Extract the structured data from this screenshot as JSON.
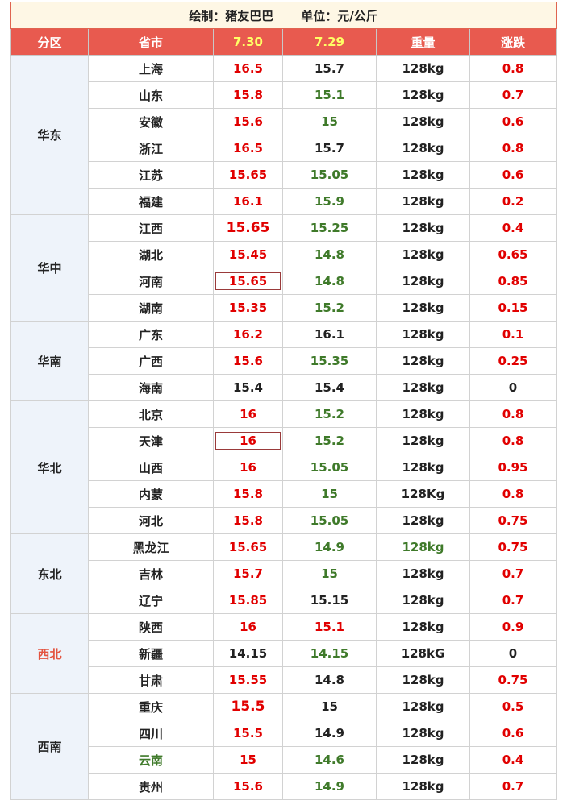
{
  "title": {
    "author": "绘制：猪友巴巴",
    "unit": "单位：元/公斤"
  },
  "headers": {
    "region": "分区",
    "province": "省市",
    "d1": "7.30",
    "d2": "7.29",
    "weight": "重量",
    "change": "涨跌"
  },
  "groups": [
    {
      "region": "华东",
      "rows": [
        {
          "prov": "上海",
          "p1": "16.5",
          "p2": "15.7",
          "w": "128kg",
          "chg": "0.8"
        },
        {
          "prov": "山东",
          "p1": "15.8",
          "p2": "15.1",
          "w": "128kg",
          "chg": "0.7"
        },
        {
          "prov": "安徽",
          "p1": "15.6",
          "p2": "15",
          "w": "128kg",
          "chg": "0.6"
        },
        {
          "prov": "浙江",
          "p1": "16.5",
          "p2": "15.7",
          "w": "128kg",
          "chg": "0.8"
        },
        {
          "prov": "江苏",
          "p1": "15.65",
          "p2": "15.05",
          "w": "128kg",
          "chg": "0.6"
        },
        {
          "prov": "福建",
          "p1": "16.1",
          "p2": "15.9",
          "w": "128kg",
          "chg": "0.2"
        }
      ]
    },
    {
      "region": "华中",
      "rows": [
        {
          "prov": "江西",
          "p1": "15.65",
          "p2": "15.25",
          "w": "128kg",
          "chg": "0.4"
        },
        {
          "prov": "湖北",
          "p1": "15.45",
          "p2": "14.8",
          "w": "128kg",
          "chg": "0.65"
        },
        {
          "prov": "河南",
          "p1": "15.65",
          "p2": "14.8",
          "w": "128kg",
          "chg": "0.85"
        },
        {
          "prov": "湖南",
          "p1": "15.35",
          "p2": "15.2",
          "w": "128kg",
          "chg": "0.15"
        }
      ]
    },
    {
      "region": "华南",
      "rows": [
        {
          "prov": "广东",
          "p1": "16.2",
          "p2": "16.1",
          "w": "128kg",
          "chg": "0.1"
        },
        {
          "prov": "广西",
          "p1": "15.6",
          "p2": "15.35",
          "w": "128kg",
          "chg": "0.25"
        },
        {
          "prov": "海南",
          "p1": "15.4",
          "p2": "15.4",
          "w": "128kg",
          "chg": "0"
        }
      ]
    },
    {
      "region": "华北",
      "rows": [
        {
          "prov": "北京",
          "p1": "16",
          "p2": "15.2",
          "w": "128kg",
          "chg": "0.8"
        },
        {
          "prov": "天津",
          "p1": "16",
          "p2": "15.2",
          "w": "128kg",
          "chg": "0.8"
        },
        {
          "prov": "山西",
          "p1": "16",
          "p2": "15.05",
          "w": "128kg",
          "chg": "0.95"
        },
        {
          "prov": "内蒙",
          "p1": "15.8",
          "p2": "15",
          "w": "128Kg",
          "chg": "0.8"
        },
        {
          "prov": "河北",
          "p1": "15.8",
          "p2": "15.05",
          "w": "128kg",
          "chg": "0.75"
        }
      ]
    },
    {
      "region": "东北",
      "rows": [
        {
          "prov": "黑龙江",
          "p1": "15.65",
          "p2": "14.9",
          "w": "128kg",
          "chg": "0.75"
        },
        {
          "prov": "吉林",
          "p1": "15.7",
          "p2": "15",
          "w": "128kg",
          "chg": "0.7"
        },
        {
          "prov": "辽宁",
          "p1": "15.85",
          "p2": "15.15",
          "w": "128kg",
          "chg": "0.7"
        }
      ]
    },
    {
      "region": "西北",
      "rows": [
        {
          "prov": "陕西",
          "p1": "16",
          "p2": "15.1",
          "w": "128kg",
          "chg": "0.9"
        },
        {
          "prov": "新疆",
          "p1": "14.15",
          "p2": "14.15",
          "w": "128kG",
          "chg": "0"
        },
        {
          "prov": "甘肃",
          "p1": "15.55",
          "p2": "14.8",
          "w": "128kg",
          "chg": "0.75"
        }
      ]
    },
    {
      "region": "西南",
      "rows": [
        {
          "prov": "重庆",
          "p1": "15.5",
          "p2": "15",
          "w": "128kg",
          "chg": "0.5"
        },
        {
          "prov": "四川",
          "p1": "15.5",
          "p2": "14.9",
          "w": "128kg",
          "chg": "0.6"
        },
        {
          "prov": "云南",
          "p1": "15",
          "p2": "14.6",
          "w": "128kg",
          "chg": "0.4"
        },
        {
          "prov": "贵州",
          "p1": "15.6",
          "p2": "14.9",
          "w": "128kg",
          "chg": "0.7"
        }
      ]
    }
  ],
  "colors": {
    "header_bg": "#e85a4f",
    "title_bg": "#fef7e5",
    "region_bg": "#eef3fa",
    "up_red": "#e10000",
    "green": "#3f7a2a",
    "date_yellow": "#ffff66"
  }
}
